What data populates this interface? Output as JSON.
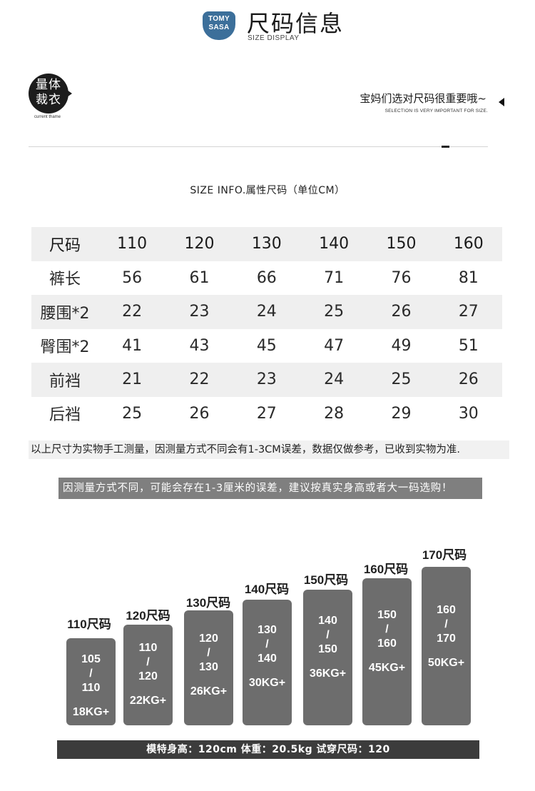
{
  "header": {
    "logo_line1": "TOMY",
    "logo_line2": "SASA",
    "title": "尺码信息",
    "subtitle": "SIZE DISPLAY"
  },
  "badge": {
    "line1": "量体",
    "line2": "裁衣",
    "caption": "current thame"
  },
  "notice": {
    "text": "宝妈们选对尺码很重要哦~",
    "sub": "SELECTION IS VERY IMPORTANT FOR SIZE."
  },
  "table": {
    "title": "SIZE INFO.属性尺码（单位CM）",
    "header": [
      "尺码",
      "110",
      "120",
      "130",
      "140",
      "150",
      "160"
    ],
    "rows": [
      [
        "裤长",
        "56",
        "61",
        "66",
        "71",
        "76",
        "81"
      ],
      [
        "腰围*2",
        "22",
        "23",
        "24",
        "25",
        "26",
        "27"
      ],
      [
        "臀围*2",
        "41",
        "43",
        "45",
        "47",
        "49",
        "51"
      ],
      [
        "前裆",
        "21",
        "22",
        "23",
        "24",
        "25",
        "26"
      ],
      [
        "后裆",
        "25",
        "26",
        "27",
        "28",
        "29",
        "30"
      ]
    ]
  },
  "notes": {
    "note1": "以上尺寸为实物手工测量，因测量方式不同会有1-3CM误差，数据仅做参考，已收到实物为准.",
    "note2": "因测量方式不同，可能会存在1-3厘米的误差，建议按真实身高或者大一码选购！"
  },
  "size_guide": [
    {
      "label": "110尺码",
      "height_top": "105",
      "slash": "/",
      "height_bottom": "110",
      "weight": "18KG+"
    },
    {
      "label": "120尺码",
      "height_top": "110",
      "slash": "/",
      "height_bottom": "120",
      "weight": "22KG+"
    },
    {
      "label": "130尺码",
      "height_top": "120",
      "slash": "/",
      "height_bottom": "130",
      "weight": "26KG+"
    },
    {
      "label": "140尺码",
      "height_top": "130",
      "slash": "/",
      "height_bottom": "140",
      "weight": "30KG+"
    },
    {
      "label": "150尺码",
      "height_top": "140",
      "slash": "/",
      "height_bottom": "150",
      "weight": "36KG+"
    },
    {
      "label": "160尺码",
      "height_top": "150",
      "slash": "/",
      "height_bottom": "160",
      "weight": "45KG+"
    },
    {
      "label": "170尺码",
      "height_top": "160",
      "slash": "/",
      "height_bottom": "170",
      "weight": "50KG+"
    }
  ],
  "footer": {
    "text": "模特身高：120cm   体重：20.5kg   试穿尺码：120"
  }
}
